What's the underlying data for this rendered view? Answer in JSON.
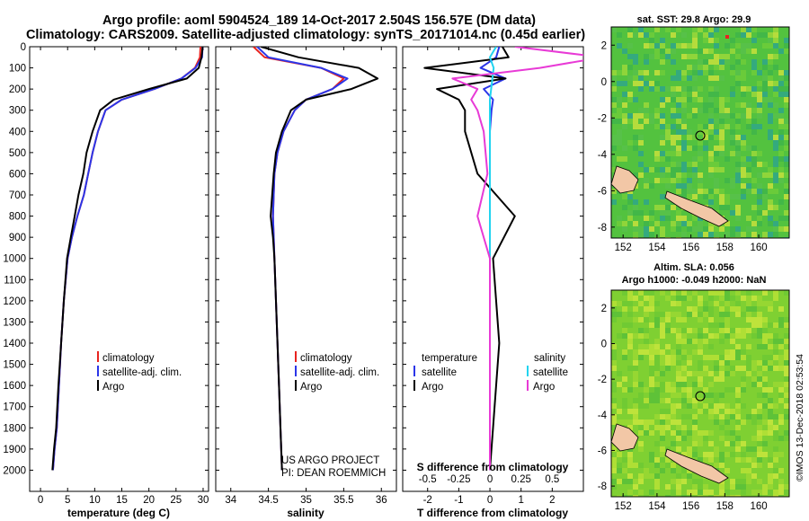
{
  "header": {
    "line1": "Argo profile: aoml 5904524_189 14-Oct-2017 2.504S 156.57E (DM data)",
    "line2": "Climatology: CARS2009. Satellite-adjusted climatology: synTS_20171014.nc (0.45d earlier)"
  },
  "colors": {
    "climatology": "#e8231f",
    "satellite": "#2b35e8",
    "argo": "#000000",
    "salinity_satellite": "#22d4f0",
    "salinity_argo": "#e83ad6",
    "map_sea": "#4ec23e",
    "map_land": "#f2c7a6"
  },
  "chart_data": [
    {
      "type": "line",
      "panel": "temperature",
      "xlabel": "temperature (deg C)",
      "xticks": [
        "0",
        "5",
        "10",
        "15",
        "20",
        "25",
        "30"
      ],
      "xlim": [
        -2,
        31
      ],
      "ylim": [
        2100,
        0
      ],
      "yticks": [
        "0",
        "100",
        "200",
        "300",
        "400",
        "500",
        "600",
        "700",
        "800",
        "900",
        "1000",
        "1100",
        "1200",
        "1300",
        "1400",
        "1500",
        "1600",
        "1700",
        "1800",
        "1900",
        "2000"
      ],
      "legend": [
        "climatology",
        "satellite-adj. clim.",
        "Argo"
      ],
      "series": [
        {
          "name": "climatology",
          "color": "#e8231f",
          "x": [
            29.5,
            29.4,
            28.5,
            26,
            21,
            15,
            12,
            10.6,
            9.6,
            8.8,
            8.0,
            6.8,
            5.8,
            5.0,
            4.3,
            3.8,
            3.4,
            3.0,
            2.6,
            2.3
          ],
          "y": [
            0,
            50,
            100,
            150,
            200,
            250,
            300,
            400,
            500,
            600,
            700,
            800,
            900,
            1000,
            1200,
            1400,
            1600,
            1800,
            1900,
            2000
          ]
        },
        {
          "name": "satellite-adj. clim.",
          "color": "#2b35e8",
          "x": [
            29.9,
            29.8,
            28.6,
            26,
            21,
            15,
            12,
            10.6,
            9.6,
            8.8,
            8.0,
            6.8,
            5.8,
            5.0,
            4.3,
            3.8,
            3.4,
            3.0,
            2.6,
            2.3
          ],
          "y": [
            0,
            50,
            100,
            150,
            200,
            250,
            300,
            400,
            500,
            600,
            700,
            800,
            900,
            1000,
            1200,
            1400,
            1600,
            1800,
            1900,
            2000
          ]
        },
        {
          "name": "Argo",
          "color": "#000000",
          "x": [
            29.9,
            29.7,
            29.2,
            27,
            20,
            13.5,
            11,
            9.6,
            8.5,
            7.9,
            7.0,
            6.3,
            5.6,
            4.9,
            4.3,
            3.8,
            3.3,
            2.9,
            2.5,
            2.2
          ],
          "y": [
            0,
            50,
            100,
            150,
            200,
            250,
            300,
            400,
            500,
            600,
            700,
            800,
            900,
            1000,
            1200,
            1400,
            1600,
            1800,
            1900,
            2000
          ]
        }
      ]
    },
    {
      "type": "line",
      "panel": "salinity",
      "xlabel": "salinity",
      "xticks": [
        "34",
        "34.5",
        "35",
        "35.5",
        "36"
      ],
      "xlim": [
        33.8,
        36.2
      ],
      "legend": [
        "climatology",
        "satellite-adj. clim.",
        "Argo"
      ],
      "annotation": [
        "US ARGO PROJECT",
        "PI: DEAN ROEMMICH"
      ],
      "series": [
        {
          "name": "climatology",
          "color": "#e8231f",
          "x": [
            34.3,
            34.45,
            35.2,
            35.5,
            35.35,
            35.0,
            34.85,
            34.7,
            34.62,
            34.58,
            34.57,
            34.56,
            34.57,
            34.58,
            34.6,
            34.62,
            34.64,
            34.66,
            34.68
          ],
          "y": [
            0,
            50,
            100,
            150,
            200,
            250,
            300,
            400,
            500,
            600,
            700,
            800,
            900,
            1000,
            1200,
            1400,
            1600,
            1800,
            2000
          ]
        },
        {
          "name": "satellite-adj. clim.",
          "color": "#2b35e8",
          "x": [
            34.35,
            34.5,
            35.2,
            35.55,
            35.35,
            35.0,
            34.85,
            34.7,
            34.62,
            34.58,
            34.57,
            34.56,
            34.57,
            34.58,
            34.6,
            34.62,
            34.64,
            34.66,
            34.68
          ],
          "y": [
            0,
            50,
            100,
            150,
            200,
            250,
            300,
            400,
            500,
            600,
            700,
            800,
            900,
            1000,
            1200,
            1400,
            1600,
            1800,
            2000
          ]
        },
        {
          "name": "Argo",
          "color": "#000000",
          "x": [
            34.4,
            34.9,
            35.7,
            35.95,
            35.6,
            35.0,
            34.8,
            34.68,
            34.6,
            34.57,
            34.55,
            34.53,
            34.56,
            34.58,
            34.6,
            34.62,
            34.64,
            34.66,
            34.68
          ],
          "y": [
            0,
            50,
            100,
            150,
            200,
            250,
            300,
            400,
            500,
            600,
            700,
            800,
            900,
            1000,
            1200,
            1400,
            1600,
            1800,
            2000
          ]
        }
      ]
    },
    {
      "type": "line",
      "panel": "difference",
      "xlabel": "T difference from climatology",
      "xticks": [
        "-2",
        "-1",
        "0",
        "1",
        "2"
      ],
      "xlim": [
        -2.8,
        3.0
      ],
      "secondary_xlabel": "S difference from climatology",
      "secondary_xticks": [
        "-0.5",
        "-0.25",
        "0",
        "0.25",
        "0.5"
      ],
      "legend_temperature_title": "temperature",
      "legend_salinity_title": "salinity",
      "legend_temperature": [
        "satellite",
        "Argo"
      ],
      "legend_salinity": [
        "satellite",
        "Argo"
      ],
      "series": [
        {
          "name": "temperature satellite",
          "color": "#2b35e8",
          "x": [
            0.3,
            0.2,
            -0.3,
            0.5,
            -0.2,
            0.1,
            0.05,
            0.0,
            0.0,
            0.0,
            0.0,
            0.0,
            0.0,
            0.0
          ],
          "y": [
            0,
            50,
            100,
            150,
            200,
            250,
            300,
            400,
            600,
            800,
            1000,
            1400,
            1800,
            2000
          ]
        },
        {
          "name": "temperature Argo",
          "color": "#000000",
          "x": [
            0.4,
            0.6,
            -2.1,
            0.5,
            -1.7,
            -1.0,
            -0.8,
            -0.8,
            -0.4,
            0.8,
            0.1,
            0.3,
            0.1,
            0.0
          ],
          "y": [
            0,
            50,
            100,
            150,
            200,
            250,
            300,
            400,
            600,
            800,
            1000,
            1400,
            1800,
            2000
          ]
        },
        {
          "name": "salinity satellite",
          "color": "#22d4f0",
          "x": [
            0.05,
            0.0,
            0.03,
            0.02,
            0.01,
            0.0,
            0.0,
            0.0,
            0.0,
            0.0,
            0.0,
            0.0,
            0.0,
            0.0
          ],
          "y": [
            0,
            50,
            100,
            150,
            200,
            250,
            300,
            400,
            600,
            800,
            1000,
            1400,
            1800,
            2000
          ]
        },
        {
          "name": "salinity Argo",
          "color": "#e83ad6",
          "x": [
            0.2,
            0.9,
            0.4,
            -0.3,
            -0.1,
            -0.15,
            -0.1,
            -0.05,
            -0.02,
            -0.1,
            0.0,
            0.0,
            0.0,
            0.0
          ],
          "y": [
            0,
            50,
            100,
            150,
            200,
            250,
            300,
            400,
            600,
            800,
            1000,
            1400,
            1800,
            2000
          ]
        }
      ]
    },
    {
      "type": "heatmap",
      "panel": "sst-map",
      "title": "sat. SST: 29.8 Argo: 29.9",
      "xticks": [
        "152",
        "154",
        "156",
        "158",
        "160"
      ],
      "yticks": [
        "2",
        "0",
        "-2",
        "-4",
        "-6",
        "-8"
      ],
      "xlim": [
        151.3,
        161.8
      ],
      "ylim": [
        -8.6,
        3.0
      ],
      "marker": {
        "lon": 156.57,
        "lat": -2.504
      }
    },
    {
      "type": "heatmap",
      "panel": "sla-map",
      "title_line1": "Altim. SLA: 0.056",
      "title_line2": "Argo h1000: -0.049 h2000: NaN",
      "xticks": [
        "152",
        "154",
        "156",
        "158",
        "160"
      ],
      "yticks": [
        "2",
        "0",
        "-2",
        "-4",
        "-6",
        "-8"
      ],
      "xlim": [
        151.3,
        161.8
      ],
      "ylim": [
        -8.6,
        3.0
      ],
      "marker": {
        "lon": 156.57,
        "lat": -2.504
      }
    }
  ],
  "footer": {
    "side_note": "©IMOS 13-Dec-2018 02:53:54"
  }
}
